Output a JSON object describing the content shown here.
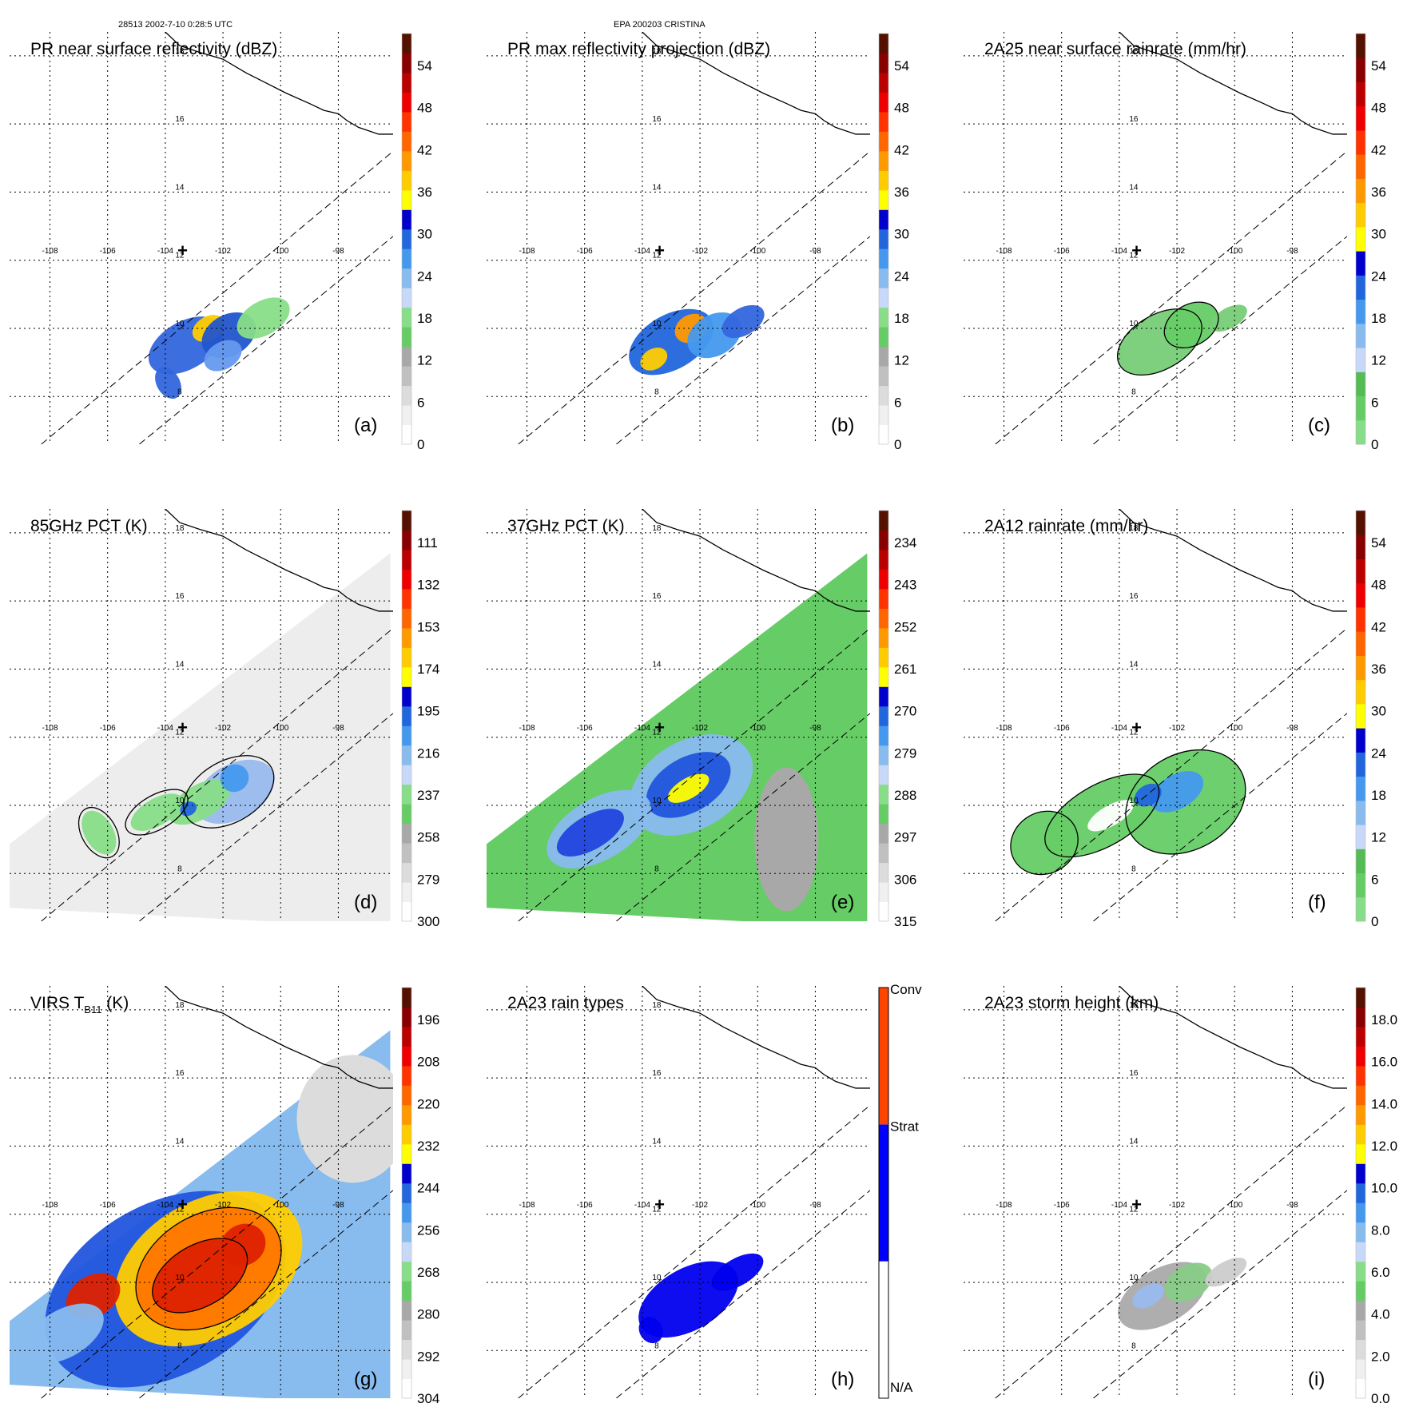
{
  "header": {
    "orbit_time": "28513 2002-7-10 0:28:5 UTC",
    "storm": "EPA 200203 CRISTINA"
  },
  "colors": {
    "grid": "#000000",
    "swath": "#000000",
    "coast": "#000000",
    "marker": "#000000"
  },
  "map": {
    "lon_labels": [
      "-108",
      "-106",
      "-104",
      "-102",
      "-100",
      "-98"
    ],
    "lat_labels": [
      "8",
      "10",
      "12",
      "14",
      "16",
      "18"
    ],
    "center_marker": "+"
  },
  "chart_data": [
    {
      "panel": "a",
      "type": "heatmap",
      "title": "PR near surface reflectivity (dBZ)",
      "label": "(a)",
      "colorbar": {
        "ticks": [
          "0",
          "6",
          "12",
          "18",
          "24",
          "30",
          "36",
          "42",
          "48",
          "54"
        ],
        "colors": [
          "#ffffff",
          "#f0f0f0",
          "#dcdcdc",
          "#c0c0c0",
          "#a8a8a8",
          "#66cc66",
          "#88dd88",
          "#c8d8f8",
          "#88bbee",
          "#4499ee",
          "#2266dd",
          "#0000cc",
          "#ffff00",
          "#ffcc00",
          "#ff9900",
          "#ff6600",
          "#ff3300",
          "#ee0000",
          "#bb0000",
          "#880000",
          "#551100"
        ]
      },
      "blobs": [
        [
          -103.3,
          9.5,
          1.4,
          0.7,
          "#3366dd"
        ],
        [
          -102.5,
          10.0,
          0.6,
          0.35,
          "#ffcc00"
        ],
        [
          -101.8,
          9.8,
          1.0,
          0.6,
          "#2255cc"
        ],
        [
          -102.0,
          9.2,
          0.7,
          0.4,
          "#6699ee"
        ],
        [
          -100.6,
          10.3,
          1.0,
          0.5,
          "#88dd88"
        ],
        [
          -103.9,
          8.4,
          0.4,
          0.5,
          "#3366dd"
        ]
      ],
      "contours": []
    },
    {
      "panel": "b",
      "type": "heatmap",
      "title": "PR max reflectivity projection (dBZ)",
      "label": "(b)",
      "colorbar": {
        "ticks": [
          "0",
          "6",
          "12",
          "18",
          "24",
          "30",
          "36",
          "42",
          "48",
          "54"
        ],
        "colors": [
          "#ffffff",
          "#f0f0f0",
          "#dcdcdc",
          "#c0c0c0",
          "#a8a8a8",
          "#66cc66",
          "#88dd88",
          "#c8d8f8",
          "#88bbee",
          "#4499ee",
          "#2266dd",
          "#0000cc",
          "#ffff00",
          "#ffcc00",
          "#ff9900",
          "#ff6600",
          "#ff3300",
          "#ee0000",
          "#bb0000",
          "#880000",
          "#551100"
        ]
      },
      "blobs": [
        [
          -103.0,
          9.6,
          1.6,
          0.8,
          "#2266dd"
        ],
        [
          -102.3,
          10.0,
          0.6,
          0.4,
          "#ff9900"
        ],
        [
          -101.5,
          9.8,
          1.0,
          0.6,
          "#4499ee"
        ],
        [
          -103.6,
          9.1,
          0.5,
          0.3,
          "#ffcc00"
        ],
        [
          -100.5,
          10.2,
          0.8,
          0.4,
          "#3366dd"
        ]
      ],
      "contours": []
    },
    {
      "panel": "c",
      "type": "heatmap",
      "title": "2A25 near surface rainrate (mm/hr)",
      "label": "(c)",
      "colorbar": {
        "ticks": [
          "0",
          "6",
          "12",
          "18",
          "24",
          "30",
          "36",
          "42",
          "48",
          "54"
        ],
        "colors": [
          "#88dd88",
          "#66cc66",
          "#55bb55",
          "#c8d8f8",
          "#88bbee",
          "#4499ee",
          "#2266dd",
          "#0000cc",
          "#ffff00",
          "#ffcc00",
          "#ff9900",
          "#ff6600",
          "#ff3300",
          "#ee0000",
          "#bb0000",
          "#880000",
          "#551100"
        ]
      },
      "blobs": [
        [
          -102.6,
          9.6,
          1.6,
          0.8,
          "#77cc77"
        ],
        [
          -101.5,
          10.1,
          1.0,
          0.6,
          "#66cc66"
        ],
        [
          -100.2,
          10.3,
          0.7,
          0.3,
          "#77cc77"
        ]
      ],
      "contours": [
        [
          -102.6,
          9.6,
          1.6,
          0.8
        ],
        [
          -101.5,
          10.1,
          1.0,
          0.6
        ]
      ]
    },
    {
      "panel": "d",
      "type": "heatmap",
      "title": "85GHz PCT (K)",
      "label": "(d)",
      "colorbar": {
        "ticks": [
          "300",
          "279",
          "258",
          "237",
          "216",
          "195",
          "174",
          "153",
          "132",
          "111"
        ],
        "colors": [
          "#ffffff",
          "#f0f0f0",
          "#dcdcdc",
          "#c0c0c0",
          "#a8a8a8",
          "#66cc66",
          "#88dd88",
          "#c8d8f8",
          "#88bbee",
          "#4499ee",
          "#2266dd",
          "#0000cc",
          "#ffff00",
          "#ffcc00",
          "#ff9900",
          "#ff6600",
          "#ff3300",
          "#ee0000",
          "#bb0000",
          "#880000",
          "#551100"
        ]
      },
      "blobs": [
        [
          -101.6,
          10.4,
          1.5,
          0.8,
          "#99bbee"
        ],
        [
          -102.8,
          10.1,
          1.2,
          0.5,
          "#88dd88"
        ],
        [
          -104.3,
          9.8,
          1.0,
          0.4,
          "#88dd88"
        ],
        [
          -106.3,
          9.2,
          0.5,
          0.7,
          "#88dd88"
        ],
        [
          -101.6,
          10.8,
          0.5,
          0.4,
          "#4499ee"
        ],
        [
          -103.2,
          9.9,
          0.3,
          0.2,
          "#2266dd"
        ]
      ],
      "contours": [
        [
          -101.8,
          10.4,
          1.7,
          0.9
        ],
        [
          -104.3,
          9.8,
          1.2,
          0.5
        ],
        [
          -106.3,
          9.2,
          0.6,
          0.8
        ]
      ]
    },
    {
      "panel": "e",
      "type": "heatmap",
      "title": "37GHz PCT (K)",
      "label": "(e)",
      "colorbar": {
        "ticks": [
          "315",
          "306",
          "297",
          "288",
          "279",
          "270",
          "261",
          "252",
          "243",
          "234"
        ],
        "colors": [
          "#ffffff",
          "#f0f0f0",
          "#dcdcdc",
          "#c0c0c0",
          "#a8a8a8",
          "#66cc66",
          "#88dd88",
          "#c8d8f8",
          "#88bbee",
          "#4499ee",
          "#2266dd",
          "#0000cc",
          "#ffff00",
          "#ffcc00",
          "#ff9900",
          "#ff6600",
          "#ff3300",
          "#ee0000",
          "#bb0000",
          "#880000",
          "#551100"
        ]
      },
      "blobs": [
        [
          -102.3,
          10.6,
          2.3,
          1.3,
          "#88bbee"
        ],
        [
          -102.4,
          10.6,
          1.6,
          0.8,
          "#2255dd"
        ],
        [
          -105.5,
          9.3,
          2.0,
          0.9,
          "#88bbee"
        ],
        [
          -105.8,
          9.2,
          1.3,
          0.5,
          "#2244dd"
        ],
        [
          -102.4,
          10.5,
          0.8,
          0.3,
          "#ffff00"
        ]
      ],
      "contours": []
    },
    {
      "panel": "f",
      "type": "heatmap",
      "title": "2A12 rainrate (mm/hr)",
      "label": "(f)",
      "colorbar": {
        "ticks": [
          "0",
          "6",
          "12",
          "18",
          "24",
          "30",
          "36",
          "42",
          "48",
          "54"
        ],
        "colors": [
          "#88dd88",
          "#66cc66",
          "#55bb55",
          "#c8d8f8",
          "#88bbee",
          "#4499ee",
          "#2266dd",
          "#0000cc",
          "#ffff00",
          "#ffcc00",
          "#ff9900",
          "#ff6600",
          "#ff3300",
          "#ee0000",
          "#bb0000",
          "#880000",
          "#551100"
        ]
      },
      "blobs": [
        [
          -101.7,
          10.1,
          2.2,
          1.4,
          "#66cc66"
        ],
        [
          -104.6,
          9.7,
          2.2,
          0.9,
          "#66cc66"
        ],
        [
          -106.6,
          8.9,
          1.2,
          0.9,
          "#66cc66"
        ],
        [
          -102.0,
          10.4,
          1.0,
          0.5,
          "#4499ee"
        ],
        [
          -103.0,
          10.3,
          0.5,
          0.3,
          "#2266dd"
        ],
        [
          -104.3,
          9.7,
          0.9,
          0.3,
          "#ffffff"
        ]
      ],
      "contours": [
        [
          -101.7,
          10.1,
          2.2,
          1.4
        ],
        [
          -104.6,
          9.7,
          2.2,
          0.9
        ],
        [
          -106.6,
          8.9,
          1.2,
          0.9
        ]
      ]
    },
    {
      "panel": "g",
      "type": "heatmap",
      "title": "VIRS T",
      "title_sub": "B11",
      "title_tail": " (K)",
      "label": "(g)",
      "colorbar": {
        "ticks": [
          "304",
          "292",
          "280",
          "268",
          "256",
          "244",
          "232",
          "220",
          "208",
          "196"
        ],
        "colors": [
          "#ffffff",
          "#f0f0f0",
          "#dcdcdc",
          "#c0c0c0",
          "#a8a8a8",
          "#66cc66",
          "#88dd88",
          "#c8d8f8",
          "#88bbee",
          "#4499ee",
          "#2266dd",
          "#0000cc",
          "#ffff00",
          "#ffcc00",
          "#ff9900",
          "#ff6600",
          "#ff3300",
          "#ee0000",
          "#bb0000",
          "#880000",
          "#551100"
        ]
      },
      "blobs": [
        [
          -104.0,
          9.8,
          4.5,
          2.5,
          "#2255dd"
        ],
        [
          -102.5,
          10.4,
          3.5,
          2.0,
          "#ffcc00"
        ],
        [
          -102.5,
          10.4,
          2.7,
          1.6,
          "#ff7700"
        ],
        [
          -102.8,
          10.2,
          1.8,
          0.9,
          "#dd2200"
        ],
        [
          -106.5,
          9.6,
          1.0,
          0.6,
          "#dd2200"
        ],
        [
          -101.3,
          11.1,
          0.8,
          0.6,
          "#dd2200"
        ],
        [
          -107.5,
          8.5,
          1.5,
          0.7,
          "#88bbee"
        ]
      ],
      "contours": [
        [
          -102.8,
          10.2,
          1.8,
          0.9
        ],
        [
          -102.5,
          10.4,
          2.7,
          1.6
        ]
      ]
    },
    {
      "panel": "h",
      "type": "heatmap",
      "title": "2A23 rain types",
      "label": "(h)",
      "colorbar": {
        "categories": [
          "N/A",
          "Strat",
          "Conv"
        ],
        "colors": [
          "#ffffff",
          "#0000ff",
          "#ff4400"
        ]
      },
      "blobs": [
        [
          -102.4,
          9.5,
          1.9,
          0.9,
          "#0000ee"
        ],
        [
          -100.7,
          10.3,
          1.0,
          0.4,
          "#0000ee"
        ],
        [
          -103.7,
          8.6,
          0.4,
          0.4,
          "#0000ee"
        ]
      ],
      "contours": []
    },
    {
      "panel": "i",
      "type": "heatmap",
      "title": "2A23 storm height (km)",
      "label": "(i)",
      "colorbar": {
        "ticks": [
          "0.0",
          "2.0",
          "4.0",
          "6.0",
          "8.0",
          "10.0",
          "12.0",
          "14.0",
          "16.0",
          "18.0"
        ],
        "colors": [
          "#ffffff",
          "#f0f0f0",
          "#dcdcdc",
          "#c0c0c0",
          "#a8a8a8",
          "#66cc66",
          "#88dd88",
          "#c8d8f8",
          "#88bbee",
          "#4499ee",
          "#2266dd",
          "#0000cc",
          "#ffff00",
          "#ffcc00",
          "#ff9900",
          "#ff6600",
          "#ff3300",
          "#ee0000",
          "#bb0000",
          "#880000",
          "#551100"
        ]
      },
      "blobs": [
        [
          -102.5,
          9.6,
          1.7,
          0.8,
          "#aaaaaa"
        ],
        [
          -101.6,
          10.0,
          0.9,
          0.5,
          "#88cc88"
        ],
        [
          -103.0,
          9.6,
          0.6,
          0.3,
          "#99bbee"
        ],
        [
          -100.3,
          10.3,
          0.8,
          0.3,
          "#cccccc"
        ]
      ],
      "contours": []
    }
  ]
}
